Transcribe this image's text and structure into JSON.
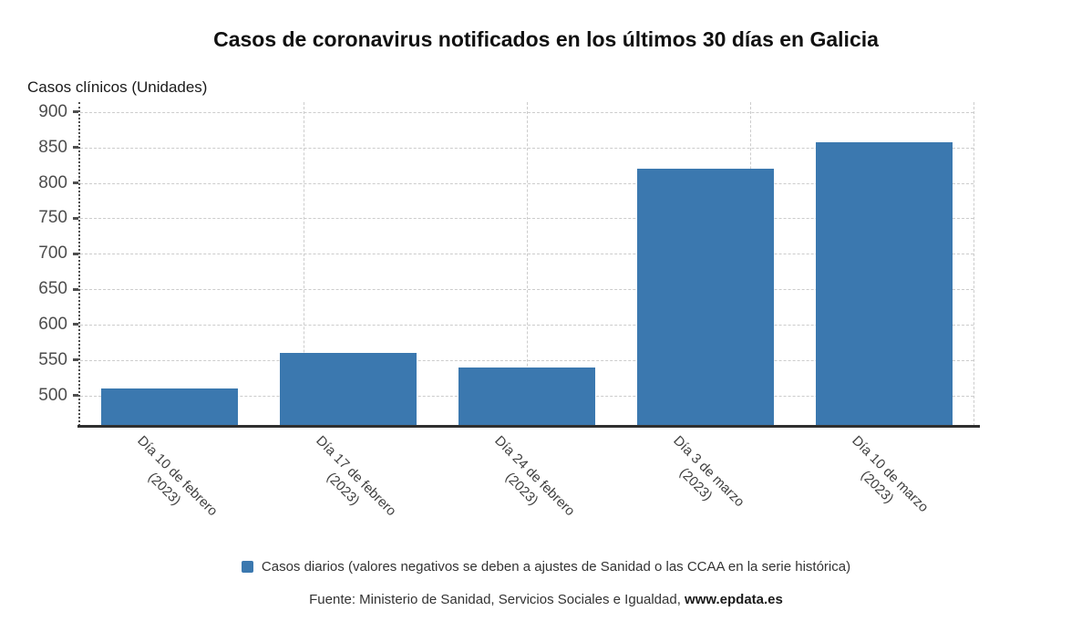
{
  "chart_data": {
    "type": "bar",
    "title": "Casos de coronavirus notificados en los últimos 30 días en Galicia",
    "ylabel": "Casos clínicos (Unidades)",
    "xlabel": "",
    "categories": [
      [
        "Día 10 de febrero",
        "(2023)"
      ],
      [
        "Día 17 de febrero",
        "(2023)"
      ],
      [
        "Día 24 de febrero",
        "(2023)"
      ],
      [
        "Día 3 de marzo",
        "(2023)"
      ],
      [
        "Día 10 de marzo",
        "(2023)"
      ]
    ],
    "series": [
      {
        "name": "Casos diarios",
        "values": [
          510,
          560,
          539,
          820,
          857
        ]
      }
    ],
    "ylim": [
      457,
      914
    ],
    "yticks": [
      500,
      550,
      600,
      650,
      700,
      750,
      800,
      850,
      900
    ],
    "grid": true,
    "gridline_style": "dashed",
    "legend_position": "bottom",
    "legend_label": "Casos diarios (valores negativos se deben a ajustes de Sanidad o las CCAA en la serie histórica)",
    "source_prefix": "Fuente: Ministerio de Sanidad, Servicios Sociales e Igualdad, ",
    "source_link": "www.epdata.es"
  },
  "colors": {
    "bar": "#3b78af",
    "grid": "#cccccc",
    "axis": "#2f2f2f",
    "tick_text": "#4d4d4d",
    "text": "#333333"
  }
}
